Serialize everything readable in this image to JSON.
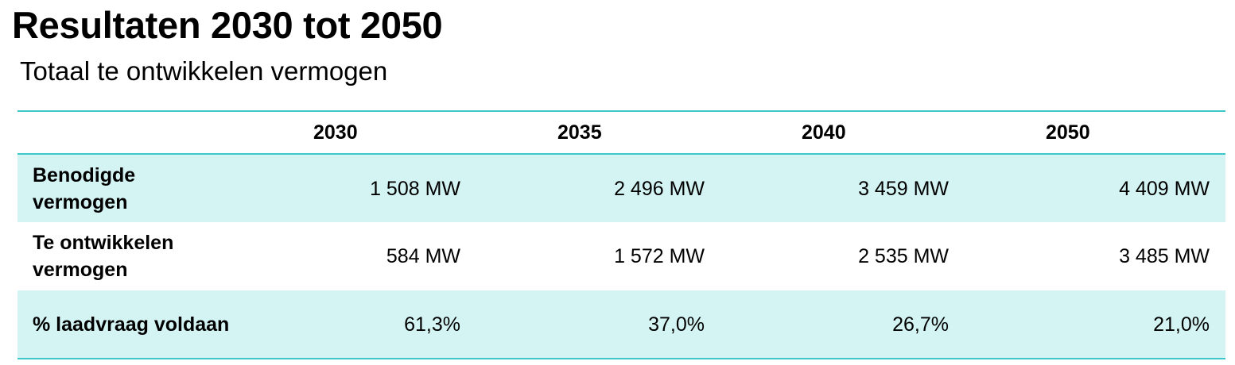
{
  "title": "Resultaten 2030 tot 2050",
  "subtitle": "Totaal te ontwikkelen vermogen",
  "table": {
    "columns": [
      "",
      "2030",
      "2035",
      "2040",
      "2050"
    ],
    "rows": [
      {
        "label": "Benodigde vermogen",
        "values": [
          "1 508 MW",
          "2 496 MW",
          "3 459 MW",
          "4 409 MW"
        ]
      },
      {
        "label": "Te ontwikkelen vermogen",
        "values": [
          "584 MW",
          "1 572 MW",
          "2 535 MW",
          "3 485 MW"
        ]
      },
      {
        "label": "% laadvraag voldaan",
        "values": [
          "61,3%",
          "37,0%",
          "26,7%",
          "21,0%"
        ]
      }
    ]
  },
  "colors": {
    "accent_line": "#3cc8c8",
    "row_shading": "#d4f4f4"
  }
}
